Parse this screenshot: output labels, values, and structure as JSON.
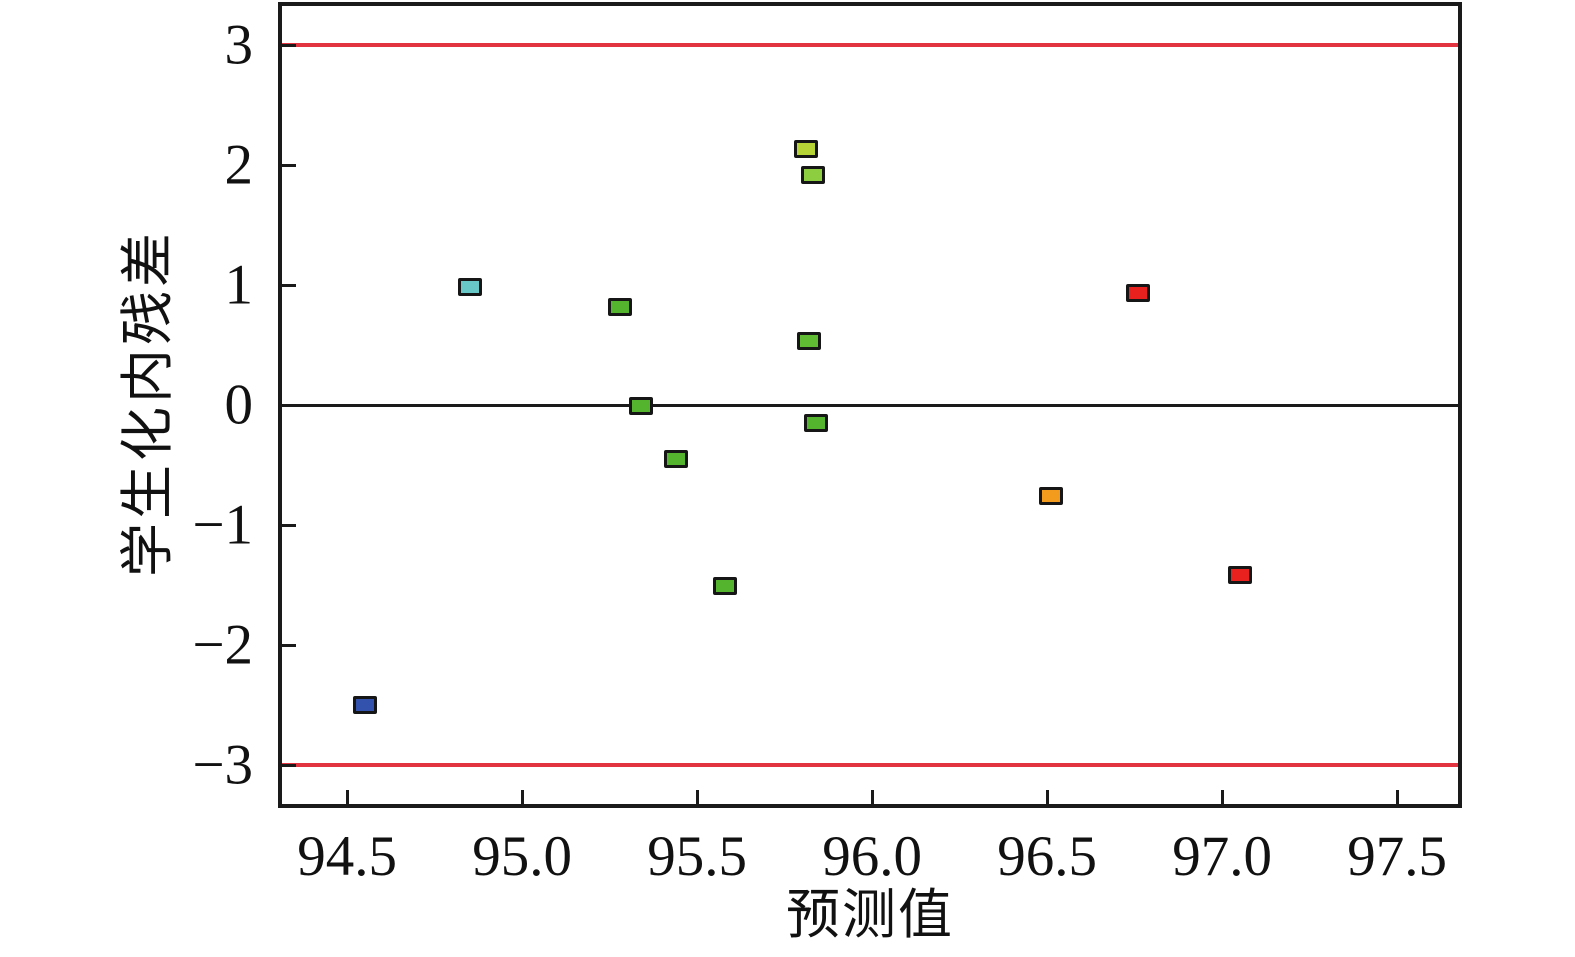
{
  "figure": {
    "background": "#ffffff",
    "axis_color": "#1a1a1a",
    "text_color": "#111111"
  },
  "chart_data": {
    "type": "scatter",
    "title": "",
    "xlabel": "预测值",
    "ylabel": "学生化内残差",
    "xlim": [
      94.314,
      97.674
    ],
    "ylim": [
      -3.325,
      3.325
    ],
    "grid": false,
    "legend": null,
    "tick_length": 14,
    "tick_width": 3,
    "x_ticks": [
      {
        "value": 94.5,
        "label": "94.5"
      },
      {
        "value": 95.0,
        "label": "95.0"
      },
      {
        "value": 95.5,
        "label": "95.5"
      },
      {
        "value": 96.0,
        "label": "96.0"
      },
      {
        "value": 96.5,
        "label": "96.5"
      },
      {
        "value": 97.0,
        "label": "97.0"
      },
      {
        "value": 97.5,
        "label": "97.5"
      }
    ],
    "y_ticks": [
      {
        "value": 3,
        "label": "3"
      },
      {
        "value": 2,
        "label": "2"
      },
      {
        "value": 1,
        "label": "1"
      },
      {
        "value": 0,
        "label": "0"
      },
      {
        "value": -1,
        "label": "−1"
      },
      {
        "value": -2,
        "label": "−2"
      },
      {
        "value": -3,
        "label": "−3"
      }
    ],
    "reference_lines": [
      {
        "y": 3.0,
        "color": "#e23440",
        "thickness": 4,
        "name": "upper-limit-line"
      },
      {
        "y": 0.0,
        "color": "#1a1a1a",
        "thickness": 3,
        "name": "zero-line"
      },
      {
        "y": -3.0,
        "color": "#e23440",
        "thickness": 4,
        "name": "lower-limit-line"
      }
    ],
    "marker": {
      "shape": "square",
      "width": 24,
      "height": 18,
      "border_color": "#161616",
      "border_width": 3
    },
    "points": [
      {
        "x": 94.55,
        "y": -2.5,
        "color": "#3352ae"
      },
      {
        "x": 94.85,
        "y": 0.98,
        "color": "#68c8c8"
      },
      {
        "x": 95.28,
        "y": 0.82,
        "color": "#55b42e"
      },
      {
        "x": 95.34,
        "y": -0.01,
        "color": "#55b42e"
      },
      {
        "x": 95.44,
        "y": -0.45,
        "color": "#55b42e"
      },
      {
        "x": 95.58,
        "y": -1.51,
        "color": "#55b42e"
      },
      {
        "x": 95.81,
        "y": 2.13,
        "color": "#b6d435"
      },
      {
        "x": 95.83,
        "y": 1.92,
        "color": "#8dce41"
      },
      {
        "x": 95.82,
        "y": 0.53,
        "color": "#5fbc33"
      },
      {
        "x": 95.84,
        "y": -0.15,
        "color": "#55b42e"
      },
      {
        "x": 96.51,
        "y": -0.76,
        "color": "#f29b1d"
      },
      {
        "x": 96.76,
        "y": 0.93,
        "color": "#e8201e"
      },
      {
        "x": 97.05,
        "y": -1.42,
        "color": "#e8201e"
      }
    ]
  }
}
